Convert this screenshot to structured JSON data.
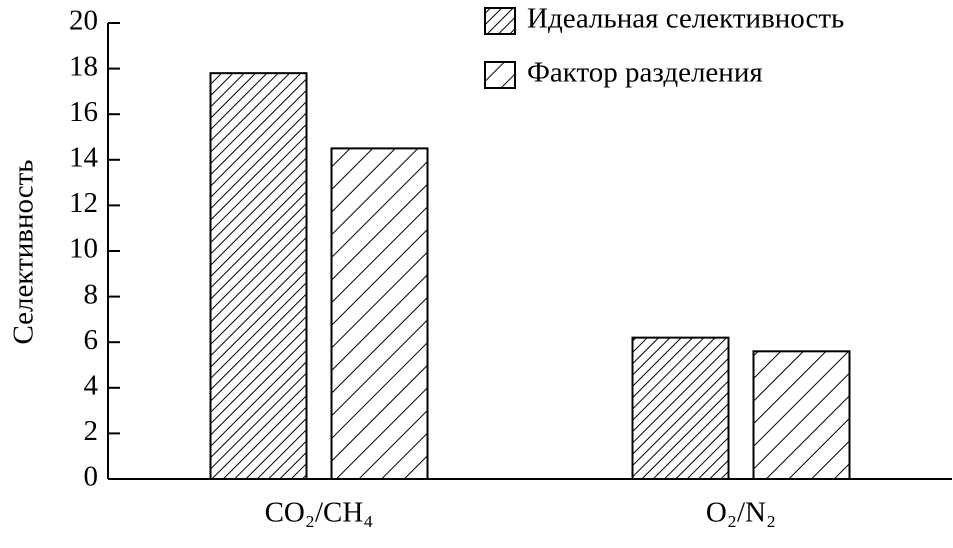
{
  "chart_data": {
    "type": "bar",
    "y_label": "Селективность",
    "categories": [
      "CO₂/CH₄",
      "O₂/N₂"
    ],
    "series": [
      {
        "name": "Идеальная селективность",
        "color": "#000000",
        "values": [
          17.8,
          6.2
        ]
      },
      {
        "name": "Фактор разделения",
        "color": "#000000",
        "values": [
          14.5,
          5.6
        ]
      }
    ],
    "ylim": [
      0,
      20
    ],
    "yticks": [
      0,
      2,
      4,
      6,
      8,
      10,
      12,
      14,
      16,
      18,
      20
    ]
  }
}
